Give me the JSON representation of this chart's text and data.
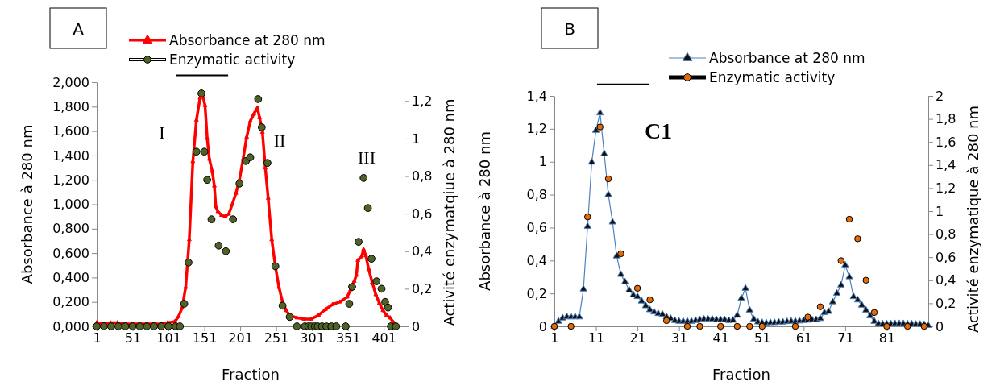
{
  "chart_data": [
    {
      "type": "line",
      "title": "A",
      "xlabel": "Fraction",
      "ylabel": "Absorbance à 280 nm",
      "y2label": "Activité enzymatqiue à 280 nm",
      "xlim": [
        1,
        430
      ],
      "xticks": [
        1,
        51,
        101,
        151,
        201,
        251,
        301,
        351,
        401
      ],
      "ylim": [
        0,
        2
      ],
      "yticks": [
        {
          "value": 0,
          "label": "0,000"
        },
        {
          "value": 0.2,
          "label": "0,200"
        },
        {
          "value": 0.4,
          "label": "0,400"
        },
        {
          "value": 0.6,
          "label": "0,600"
        },
        {
          "value": 0.8,
          "label": "0,800"
        },
        {
          "value": 1,
          "label": "1,000"
        },
        {
          "value": 1.2,
          "label": "1,200"
        },
        {
          "value": 1.4,
          "label": "1,400"
        },
        {
          "value": 1.6,
          "label": "1,600"
        },
        {
          "value": 1.8,
          "label": "1,800"
        },
        {
          "value": 2,
          "label": "2,000"
        }
      ],
      "y2lim": [
        0,
        1.3
      ],
      "y2ticks": [
        0,
        {
          "value": 0.2,
          "label": "0,2"
        },
        {
          "value": 0.4,
          "label": "0,4"
        },
        {
          "value": 0.6,
          "label": "0,6"
        },
        {
          "value": 0.8,
          "label": "0,8"
        },
        1,
        {
          "value": 1.2,
          "label": "1,2"
        }
      ],
      "legend": "top",
      "grid": false,
      "annotations": [
        "I",
        "II",
        "III"
      ],
      "series": [
        {
          "name": "Absorbance at 280 nm",
          "type": "line",
          "color": "#ff0000",
          "marker": "triangle",
          "x": [
            1,
            10,
            20,
            30,
            40,
            50,
            60,
            70,
            80,
            90,
            100,
            110,
            115,
            120,
            125,
            130,
            135,
            140,
            145,
            148,
            152,
            155,
            158,
            162,
            165,
            167,
            170,
            175,
            180,
            185,
            190,
            195,
            200,
            205,
            210,
            215,
            220,
            225,
            228,
            232,
            236,
            240,
            245,
            250,
            255,
            260,
            265,
            270,
            280,
            290,
            300,
            310,
            320,
            330,
            340,
            350,
            355,
            360,
            363,
            365,
            370,
            373,
            376,
            380,
            385,
            390,
            395,
            400,
            405,
            410,
            415,
            419
          ],
          "values": [
            0.03,
            0.02,
            0.03,
            0.03,
            0.02,
            0.02,
            0.02,
            0.02,
            0.02,
            0.02,
            0.03,
            0.04,
            0.08,
            0.15,
            0.32,
            0.71,
            1.35,
            1.69,
            1.87,
            1.91,
            1.81,
            1.54,
            1.37,
            1.27,
            1.15,
            0.98,
            0.94,
            0.91,
            0.9,
            0.92,
            1.0,
            1.09,
            1.2,
            1.37,
            1.55,
            1.68,
            1.74,
            1.79,
            1.71,
            1.59,
            1.3,
            1.05,
            0.71,
            0.49,
            0.32,
            0.2,
            0.13,
            0.09,
            0.07,
            0.06,
            0.06,
            0.09,
            0.14,
            0.18,
            0.2,
            0.24,
            0.3,
            0.37,
            0.42,
            0.54,
            0.57,
            0.63,
            0.58,
            0.47,
            0.36,
            0.26,
            0.19,
            0.13,
            0.09,
            0.07,
            0.03,
            0
          ]
        },
        {
          "name": "Enzymatic activity",
          "type": "scatter",
          "axis": "y2",
          "color": "#4f6228",
          "marker": "circle",
          "x": [
            1,
            11,
            21,
            31,
            41,
            51,
            61,
            71,
            81,
            91,
            101,
            111,
            117,
            123,
            129,
            140,
            147,
            151,
            155,
            161,
            171,
            181,
            191,
            200,
            209,
            215,
            226,
            231,
            239,
            250,
            260,
            270,
            280,
            291,
            296,
            300,
            305,
            309,
            315,
            321,
            328,
            335,
            348,
            353,
            357,
            366,
            373,
            379,
            384,
            391,
            398,
            403,
            407,
            411,
            418
          ],
          "values": [
            0,
            0,
            0,
            0,
            0,
            0,
            0,
            0,
            0,
            0,
            0,
            0,
            0,
            0.12,
            0.34,
            0.93,
            1.24,
            0.93,
            0.78,
            0.57,
            0.43,
            0.4,
            0.57,
            0.76,
            0.88,
            0.9,
            1.21,
            1.06,
            0.87,
            0.32,
            0.11,
            0.05,
            0,
            0,
            0,
            0,
            0,
            0,
            0,
            0,
            0,
            0,
            0,
            0.12,
            0.21,
            0.45,
            0.79,
            0.63,
            0.36,
            0.24,
            0.2,
            0.13,
            0.1,
            0,
            0
          ]
        }
      ]
    },
    {
      "type": "line",
      "title": "B",
      "xlabel": "Fraction",
      "ylabel": "Absorbance à 280 nm",
      "y2label": "Activité enzymatique à 280 nm",
      "xlim": [
        1,
        91
      ],
      "xticks": [
        1,
        11,
        21,
        31,
        41,
        51,
        61,
        71,
        81
      ],
      "ylim": [
        0,
        1.4
      ],
      "yticks": [
        0,
        {
          "value": 0.2,
          "label": "0,2"
        },
        {
          "value": 0.4,
          "label": "0,4"
        },
        {
          "value": 0.6,
          "label": "0,6"
        },
        {
          "value": 0.8,
          "label": "0,8"
        },
        1,
        {
          "value": 1.2,
          "label": "1,2"
        },
        {
          "value": 1.4,
          "label": "1,4"
        }
      ],
      "y2lim": [
        0,
        2
      ],
      "y2ticks": [
        0,
        {
          "value": 0.2,
          "label": "0,2"
        },
        {
          "value": 0.4,
          "label": "0,4"
        },
        {
          "value": 0.6,
          "label": "0,6"
        },
        {
          "value": 0.8,
          "label": "0,8"
        },
        1,
        {
          "value": 1.2,
          "label": "1,2"
        },
        {
          "value": 1.4,
          "label": "1,4"
        },
        {
          "value": 1.6,
          "label": "1,6"
        },
        {
          "value": 1.8,
          "label": "1,8"
        },
        2
      ],
      "legend": "top",
      "grid": false,
      "annotations": [
        "C1"
      ],
      "series": [
        {
          "name": "Absorbance at 280 nm",
          "type": "line",
          "color": "#4f81bd",
          "marker": "triangle",
          "x": [
            1,
            2,
            3,
            4,
            5,
            6,
            7,
            8,
            9,
            10,
            11,
            12,
            13,
            14,
            15,
            16,
            17,
            18,
            19,
            20,
            21,
            22,
            23,
            24,
            25,
            26,
            27,
            28,
            29,
            30,
            31,
            32,
            33,
            34,
            35,
            36,
            37,
            38,
            39,
            40,
            41,
            42,
            43,
            44,
            45,
            46,
            47,
            48,
            49,
            50,
            51,
            52,
            53,
            54,
            55,
            56,
            57,
            58,
            59,
            60,
            61,
            62,
            63,
            64,
            65,
            66,
            67,
            68,
            69,
            70,
            71,
            72,
            73,
            74,
            75,
            76,
            77,
            78,
            79,
            80,
            81,
            82,
            83,
            84,
            85,
            86,
            87,
            88,
            89,
            90,
            91
          ],
          "values": [
            0,
            0.03,
            0.05,
            0.057,
            0.057,
            0.057,
            0.057,
            0.226,
            0.607,
            0.997,
            1.19,
            1.296,
            1.048,
            0.8,
            0.633,
            0.427,
            0.315,
            0.27,
            0.22,
            0.19,
            0.18,
            0.153,
            0.124,
            0.1,
            0.087,
            0.077,
            0.073,
            0.057,
            0.047,
            0.035,
            0.03,
            0.03,
            0.03,
            0.03,
            0.035,
            0.04,
            0.043,
            0.043,
            0.043,
            0.04,
            0.04,
            0.04,
            0.035,
            0.037,
            0.067,
            0.17,
            0.23,
            0.098,
            0.043,
            0.026,
            0.022,
            0.02,
            0.022,
            0.022,
            0.025,
            0.025,
            0.028,
            0.03,
            0.03,
            0.032,
            0.035,
            0.037,
            0.04,
            0.04,
            0.047,
            0.083,
            0.09,
            0.148,
            0.2,
            0.25,
            0.372,
            0.3,
            0.18,
            0.16,
            0.128,
            0.098,
            0.063,
            0.03,
            0.016,
            0.014,
            0.014,
            0.014,
            0.016,
            0.016,
            0.016,
            0.014,
            0.014,
            0.012,
            0.012,
            0.01,
            0.005
          ]
        },
        {
          "name": "Enzymatic activity",
          "type": "scatter",
          "axis": "y2",
          "color": "#e46c0a",
          "marker": "circle",
          "x": [
            1,
            5,
            9,
            12,
            14,
            17,
            21,
            24,
            28,
            33,
            36,
            41,
            45,
            48,
            51,
            59,
            62,
            65,
            70,
            72,
            74,
            76,
            78,
            81,
            86,
            90
          ],
          "values": [
            0,
            0,
            0.95,
            1.73,
            1.28,
            0.63,
            0.33,
            0.23,
            0.05,
            0,
            0,
            0,
            0,
            0,
            0,
            0,
            0.08,
            0.17,
            0.57,
            0.93,
            0.76,
            0.4,
            0.12,
            0,
            0,
            0
          ]
        }
      ]
    }
  ]
}
